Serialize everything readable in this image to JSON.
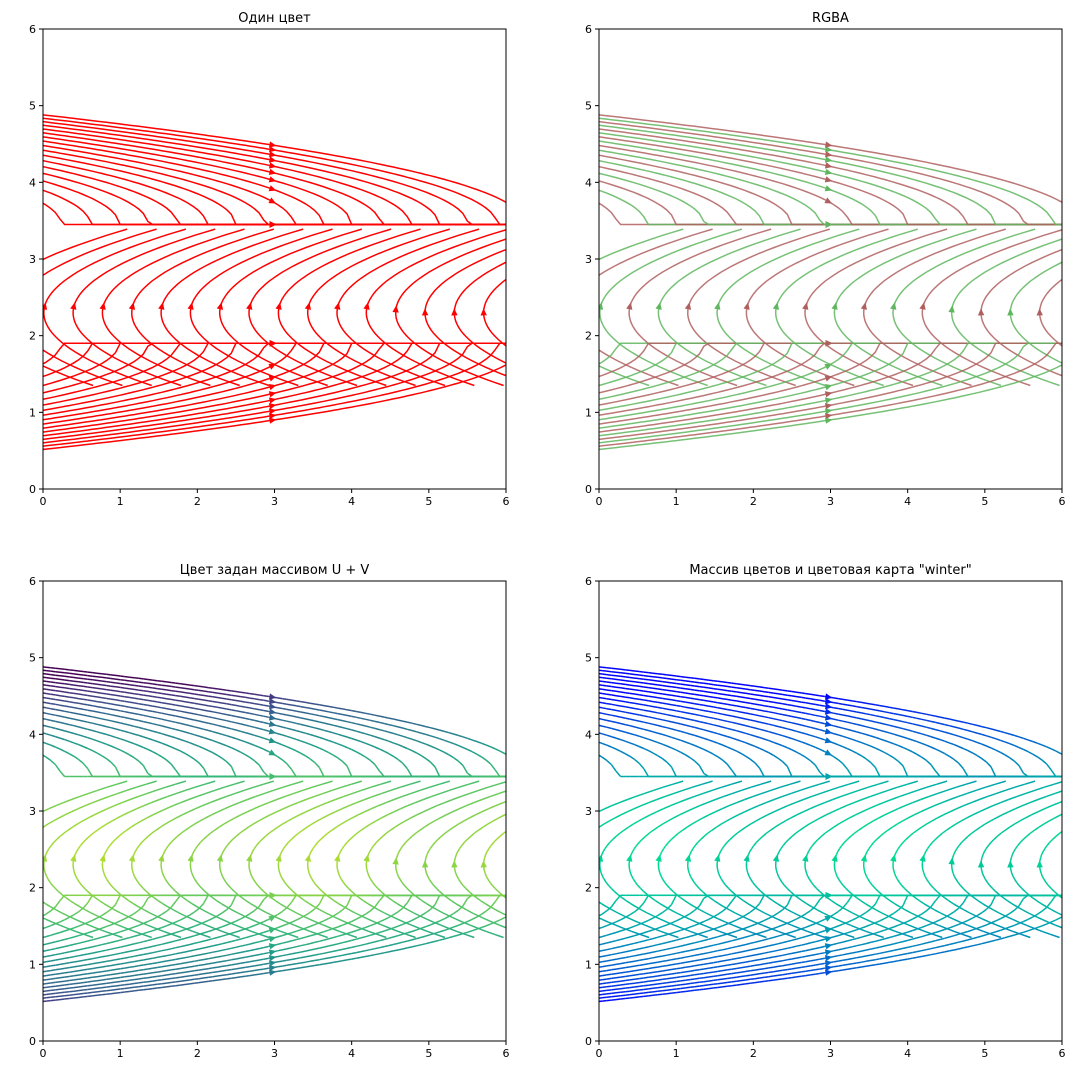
{
  "chart_data": [
    {
      "type": "streamplot",
      "title": "Один цвет",
      "color_mode": "single",
      "color": "#ff0000",
      "xlim": [
        0,
        6
      ],
      "ylim": [
        0,
        6
      ],
      "xticks": [
        "0",
        "1",
        "2",
        "3",
        "4",
        "5",
        "6"
      ],
      "yticks": [
        "0",
        "1",
        "2",
        "3",
        "4",
        "5",
        "6"
      ],
      "x_center": 2.0,
      "y_center": 2.3,
      "separatrix_y": 3.3,
      "field": "U = 1 - y + 2.3, V = x^2 ... (streamlines)"
    },
    {
      "type": "streamplot",
      "title": "RGBA",
      "color_mode": "rgba",
      "colors": [
        "#5fb65f",
        "#b05f5f"
      ],
      "xlim": [
        0,
        6
      ],
      "ylim": [
        0,
        6
      ],
      "xticks": [
        "0",
        "1",
        "2",
        "3",
        "4",
        "5",
        "6"
      ],
      "yticks": [
        "0",
        "1",
        "2",
        "3",
        "4",
        "5",
        "6"
      ],
      "x_center": 2.0,
      "y_center": 2.3,
      "separatrix_y": 3.3
    },
    {
      "type": "streamplot",
      "title": "Цвет задан массивом U + V",
      "color_mode": "array",
      "colormap": "viridis",
      "xlim": [
        0,
        6
      ],
      "ylim": [
        0,
        6
      ],
      "xticks": [
        "0",
        "1",
        "2",
        "3",
        "4",
        "5",
        "6"
      ],
      "yticks": [
        "0",
        "1",
        "2",
        "3",
        "4",
        "5",
        "6"
      ],
      "x_center": 2.0,
      "y_center": 2.3,
      "separatrix_y": 3.3
    },
    {
      "type": "streamplot",
      "title": "Массив цветов и цветовая карта \"winter\"",
      "color_mode": "array",
      "colormap": "winter",
      "xlim": [
        0,
        6
      ],
      "ylim": [
        0,
        6
      ],
      "xticks": [
        "0",
        "1",
        "2",
        "3",
        "4",
        "5",
        "6"
      ],
      "yticks": [
        "0",
        "1",
        "2",
        "3",
        "4",
        "5",
        "6"
      ],
      "x_center": 2.0,
      "y_center": 2.3,
      "separatrix_y": 3.3
    }
  ]
}
